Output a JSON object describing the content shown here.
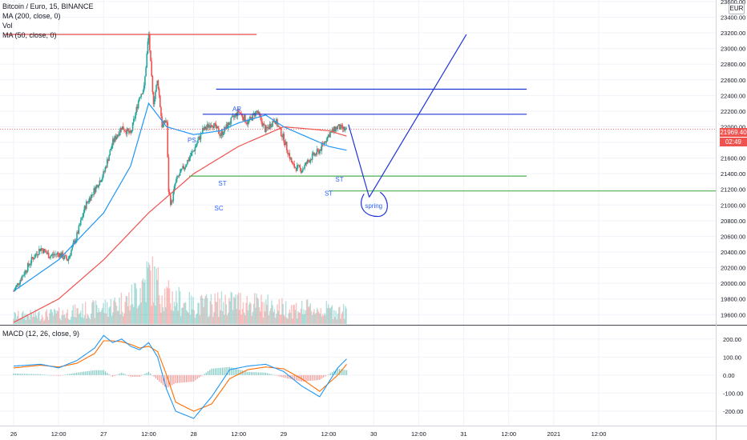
{
  "legend": {
    "symbol": "Bitcoin / Euro, 15, BINANCE",
    "indicators": [
      "MA (200, close, 0)",
      "Vol",
      "MA (50, close, 0)"
    ]
  },
  "macd_legend": "MACD (12, 26, close, 9)",
  "currency_badge": "EUR",
  "price_tags": {
    "last_price": "21969.40",
    "countdown": "02:49"
  },
  "colors": {
    "up": "#26a69a",
    "down": "#ef5350",
    "ma200": "#ef5350",
    "ma50": "#2196f3",
    "macd": "#2196f3",
    "signal": "#ff6d00",
    "annotation_blue": "#1f35d8",
    "annotation_red": "#e53935",
    "annotation_green": "#4caf50",
    "label_blue": "#2962ff"
  },
  "chart_data": [
    {
      "type": "candlestick",
      "price_axis_ticks": [
        "23600.00",
        "23400.00",
        "23200.00",
        "23000.00",
        "22800.00",
        "22600.00",
        "22400.00",
        "22200.00",
        "22000.00",
        "21800.00",
        "21600.00",
        "21400.00",
        "21200.00",
        "21000.00",
        "20800.00",
        "20600.00",
        "20400.00",
        "20200.00",
        "20000.00",
        "19800.00",
        "19600.00"
      ],
      "ylim": [
        19480,
        23620
      ],
      "time_axis_ticks": [
        "26",
        "12:00",
        "27",
        "12:00",
        "28",
        "12:00",
        "29",
        "12:00",
        "30",
        "12:00",
        "31",
        "12:00",
        "2021",
        "12:00"
      ],
      "xlim_days": [
        26.0,
        33.8
      ],
      "close_series": {
        "t": [
          26.0,
          26.1,
          26.2,
          26.3,
          26.4,
          26.5,
          26.6,
          26.7,
          26.8,
          26.9,
          27.0,
          27.1,
          27.2,
          27.3,
          27.4,
          27.45,
          27.5,
          27.55,
          27.6,
          27.65,
          27.7,
          27.72,
          27.75,
          27.8,
          27.9,
          28.0,
          28.1,
          28.2,
          28.3,
          28.4,
          28.5,
          28.6,
          28.7,
          28.8,
          28.9,
          29.0,
          29.1,
          29.2,
          29.3,
          29.4,
          29.5,
          29.6,
          29.7
        ],
        "c": [
          19900,
          20100,
          20300,
          20450,
          20350,
          20380,
          20300,
          20600,
          21000,
          21200,
          21400,
          21800,
          22000,
          21900,
          22400,
          22500,
          23200,
          22300,
          22600,
          22000,
          22100,
          21200,
          21000,
          21300,
          21500,
          21700,
          21950,
          22050,
          21900,
          22050,
          22200,
          22050,
          22200,
          21950,
          22100,
          21850,
          21500,
          21450,
          21600,
          21700,
          21900,
          22000,
          21950
        ]
      },
      "volume": {
        "t": [
          26.0,
          26.5,
          27.0,
          27.3,
          27.5,
          27.7,
          28.0,
          28.5,
          29.0,
          29.5,
          29.7
        ],
        "v": [
          20,
          25,
          40,
          60,
          120,
          70,
          45,
          55,
          40,
          35,
          30
        ]
      },
      "ma200": {
        "t": [
          26.0,
          26.5,
          27.0,
          27.5,
          28.0,
          28.5,
          29.0,
          29.5,
          29.7
        ],
        "v": [
          19500,
          19800,
          20300,
          20900,
          21400,
          21750,
          22000,
          21950,
          21880
        ]
      },
      "ma50": {
        "t": [
          26.0,
          26.5,
          27.0,
          27.3,
          27.5,
          27.7,
          28.0,
          28.3,
          28.5,
          28.8,
          29.0,
          29.3,
          29.5,
          29.7
        ],
        "v": [
          19900,
          20300,
          20900,
          21500,
          22300,
          22000,
          21900,
          21950,
          22050,
          22150,
          22000,
          21850,
          21750,
          21700
        ]
      },
      "last_price": 21969.4,
      "annotations": {
        "lines": [
          {
            "color": "red",
            "t1": 25.9,
            "p1": 23180,
            "t2": 28.7,
            "p2": 23180
          },
          {
            "color": "blue",
            "t1": 28.25,
            "p1": 22480,
            "t2": 31.7,
            "p2": 22480
          },
          {
            "color": "blue",
            "t1": 28.1,
            "p1": 22160,
            "t2": 31.7,
            "p2": 22160
          },
          {
            "color": "green",
            "t1": 27.95,
            "p1": 21370,
            "t2": 31.7,
            "p2": 21370
          },
          {
            "color": "green",
            "t1": 29.5,
            "p1": 21180,
            "t2": 33.8,
            "p2": 21180
          },
          {
            "color": "blue",
            "t1": 29.72,
            "p1": 22030,
            "t2": 29.95,
            "p2": 21100
          },
          {
            "color": "blue",
            "t1": 29.95,
            "p1": 21100,
            "t2": 31.03,
            "p2": 23180
          }
        ],
        "labels": [
          {
            "text": "PS",
            "t": 27.98,
            "p": 21800
          },
          {
            "text": "SC",
            "t": 28.28,
            "p": 20930
          },
          {
            "text": "ST",
            "t": 28.32,
            "p": 21250
          },
          {
            "text": "AR",
            "t": 28.48,
            "p": 22200
          },
          {
            "text": "ST",
            "t": 29.5,
            "p": 21120
          },
          {
            "text": "ST",
            "t": 29.62,
            "p": 21300
          },
          {
            "text": "spring",
            "t": 30.0,
            "p": 20960
          }
        ]
      }
    },
    {
      "type": "line",
      "title": "MACD (12, 26, close, 9)",
      "y_axis_ticks": [
        "200.00",
        "100.00",
        "0.00",
        "-100.00",
        "-200.00"
      ],
      "ylim": [
        -280,
        270
      ],
      "series": [
        {
          "t": [
            26.0,
            26.3,
            26.5,
            26.7,
            26.9,
            27.0,
            27.1,
            27.2,
            27.3,
            27.4,
            27.5,
            27.6,
            27.7,
            27.8,
            28.0,
            28.2,
            28.4,
            28.6,
            28.8,
            29.0,
            29.2,
            29.4,
            29.6,
            29.7
          ],
          "v": [
            50,
            60,
            40,
            80,
            150,
            220,
            180,
            200,
            160,
            140,
            180,
            100,
            -80,
            -200,
            -240,
            -120,
            30,
            50,
            60,
            20,
            -60,
            -120,
            40,
            90
          ]
        },
        {
          "t": [
            26.0,
            26.3,
            26.5,
            26.7,
            26.9,
            27.0,
            27.1,
            27.2,
            27.3,
            27.4,
            27.5,
            27.6,
            27.7,
            27.8,
            28.0,
            28.2,
            28.4,
            28.6,
            28.8,
            29.0,
            29.2,
            29.4,
            29.6,
            29.7
          ],
          "v": [
            40,
            55,
            45,
            65,
            120,
            190,
            190,
            185,
            170,
            150,
            160,
            130,
            0,
            -150,
            -200,
            -160,
            -20,
            30,
            45,
            35,
            -20,
            -90,
            0,
            60
          ]
        }
      ]
    }
  ]
}
